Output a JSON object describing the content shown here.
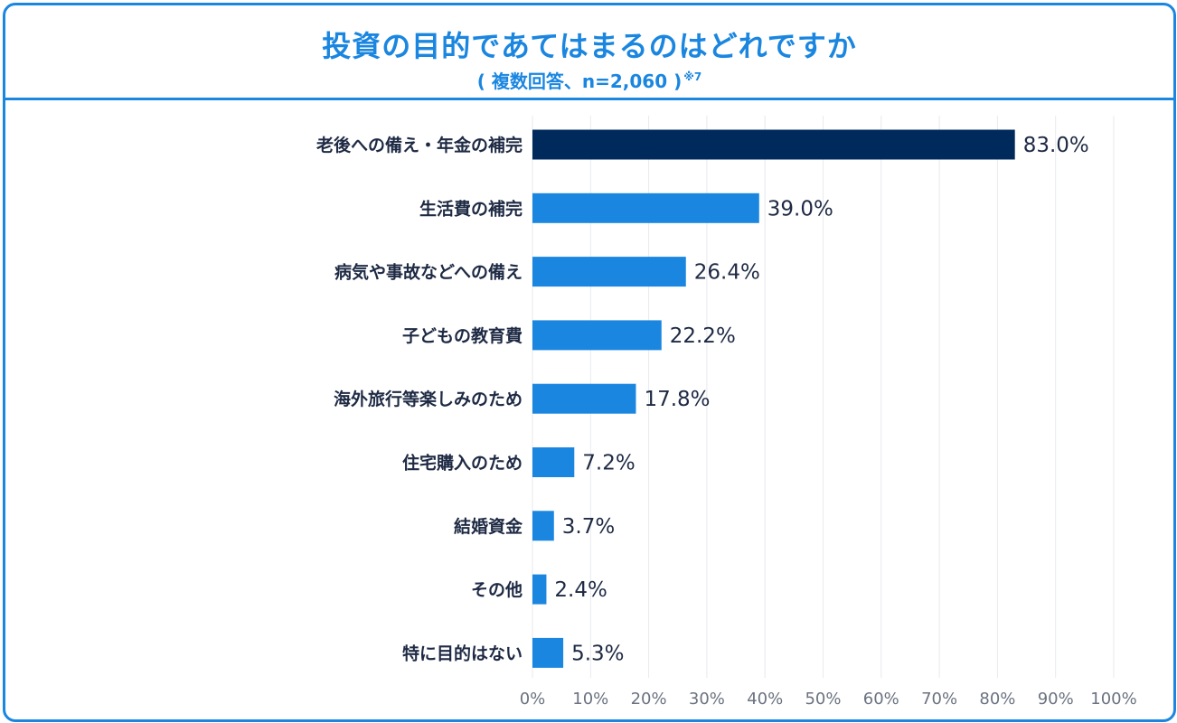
{
  "title": "投資の目的であてはまるのはどれですか",
  "subtitle": "( 複数回答、n=2,060 )",
  "footnote_mark": "※7",
  "colors": {
    "accent": "#1a86e0",
    "highlight": "#002a5c",
    "bar": "#1a86e0"
  },
  "chart_data": {
    "type": "bar",
    "orientation": "horizontal",
    "title": "投資の目的であてはまるのはどれですか",
    "categories": [
      "老後への備え・年金の補完",
      "生活費の補完",
      "病気や事故などへの備え",
      "子どもの教育費",
      "海外旅行等楽しみのため",
      "住宅購入のため",
      "結婚資金",
      "その他",
      "特に目的はない"
    ],
    "values": [
      83.0,
      39.0,
      26.4,
      22.2,
      17.8,
      7.2,
      3.7,
      2.4,
      5.3
    ],
    "value_labels": [
      "83.0%",
      "39.0%",
      "26.4%",
      "22.2%",
      "17.8%",
      "7.2%",
      "3.7%",
      "2.4%",
      "5.3%"
    ],
    "highlight_index": 0,
    "xlim": [
      0,
      100
    ],
    "xticks": [
      "0%",
      "10%",
      "20%",
      "30%",
      "40%",
      "50%",
      "60%",
      "70%",
      "80%",
      "90%",
      "100%"
    ],
    "grid": true,
    "xlabel": "",
    "ylabel": ""
  }
}
